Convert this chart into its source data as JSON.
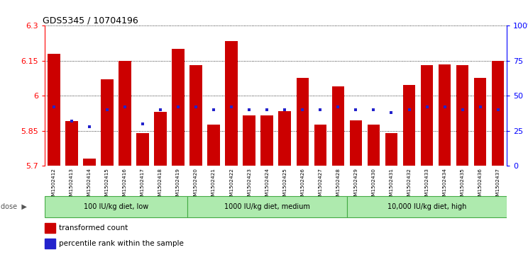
{
  "title": "GDS5345 / 10704196",
  "samples": [
    "GSM1502412",
    "GSM1502413",
    "GSM1502414",
    "GSM1502415",
    "GSM1502416",
    "GSM1502417",
    "GSM1502418",
    "GSM1502419",
    "GSM1502420",
    "GSM1502421",
    "GSM1502422",
    "GSM1502423",
    "GSM1502424",
    "GSM1502425",
    "GSM1502426",
    "GSM1502427",
    "GSM1502428",
    "GSM1502429",
    "GSM1502430",
    "GSM1502431",
    "GSM1502432",
    "GSM1502433",
    "GSM1502434",
    "GSM1502435",
    "GSM1502436",
    "GSM1502437"
  ],
  "bar_values": [
    6.18,
    5.89,
    5.73,
    6.07,
    6.15,
    5.84,
    5.93,
    6.2,
    6.13,
    5.875,
    6.235,
    5.915,
    5.915,
    5.935,
    6.075,
    5.875,
    6.04,
    5.895,
    5.875,
    5.84,
    6.045,
    6.13,
    6.135,
    6.13,
    6.075,
    6.15
  ],
  "percentile_pct": [
    42,
    32,
    28,
    40,
    42,
    30,
    40,
    42,
    42,
    40,
    42,
    40,
    40,
    40,
    40,
    40,
    42,
    40,
    40,
    38,
    40,
    42,
    42,
    40,
    42,
    40
  ],
  "y_min": 5.7,
  "y_max": 6.3,
  "y_ticks": [
    5.7,
    5.85,
    6.0,
    6.15,
    6.3
  ],
  "y_tick_labels": [
    "5.7",
    "5.85",
    "6",
    "6.15",
    "6.3"
  ],
  "right_ticks": [
    0,
    25,
    50,
    75,
    100
  ],
  "right_tick_labels": [
    "0",
    "25",
    "50",
    "75",
    "100%"
  ],
  "bar_color": "#cc0000",
  "percentile_color": "#2222cc",
  "groups": [
    {
      "label": "100 IU/kg diet, low",
      "start": 0,
      "end": 8
    },
    {
      "label": "1000 IU/kg diet, medium",
      "start": 8,
      "end": 17
    },
    {
      "label": "10,000 IU/kg diet, high",
      "start": 17,
      "end": 26
    }
  ],
  "group_color": "#aeeaae",
  "group_border_color": "#44aa44",
  "legend_items": [
    {
      "label": "transformed count",
      "color": "#cc0000"
    },
    {
      "label": "percentile rank within the sample",
      "color": "#2222cc"
    }
  ],
  "background_color": "#ffffff",
  "tick_area_bg": "#cccccc"
}
